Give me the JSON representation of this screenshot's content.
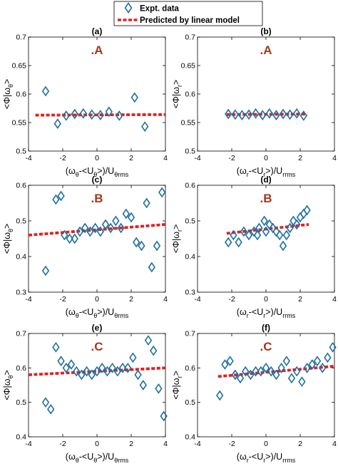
{
  "legend": {
    "items": [
      {
        "label": "Expt. data",
        "marker": "diamond",
        "color": "#1f6f9f"
      },
      {
        "label": "Predicted by linear model",
        "marker": "dashed-line",
        "color": "#e02020"
      }
    ]
  },
  "colors": {
    "marker": "#1f6f9f",
    "fit": "#e02020",
    "case_label": "#a0391a"
  },
  "chart_data": [
    {
      "type": "scatter",
      "panel": "(a)",
      "case": ".A",
      "xlabel": {
        "base": "(ω",
        "parts": [
          [
            "sub",
            "θ"
          ],
          [
            "n",
            "-<U"
          ],
          [
            "sub",
            "θ"
          ],
          [
            "n",
            ">)/U"
          ],
          [
            "sub",
            "θrms"
          ]
        ]
      },
      "ylabel": {
        "base": "<Φ|ω",
        "parts": [
          [
            "sub",
            "θ"
          ],
          [
            "n",
            ">"
          ]
        ]
      },
      "xlim": [
        -4,
        4
      ],
      "ylim": [
        0.5,
        0.7
      ],
      "xticks": [
        -4,
        -2,
        0,
        2,
        4
      ],
      "yticks": [
        0.5,
        0.55,
        0.6,
        0.65,
        0.7
      ],
      "ytick_labels": [
        "0.5",
        "0.55",
        "0.6",
        "0.65",
        "0.7"
      ],
      "points": [
        [
          -3.0,
          0.605
        ],
        [
          -2.3,
          0.548
        ],
        [
          -1.8,
          0.562
        ],
        [
          -1.3,
          0.565
        ],
        [
          -0.8,
          0.566
        ],
        [
          -0.3,
          0.564
        ],
        [
          0.2,
          0.563
        ],
        [
          0.7,
          0.569
        ],
        [
          1.3,
          0.562
        ],
        [
          2.2,
          0.594
        ],
        [
          2.8,
          0.543
        ]
      ],
      "fit": [
        [
          -3.6,
          0.563
        ],
        [
          4.0,
          0.564
        ]
      ]
    },
    {
      "type": "scatter",
      "panel": "(b)",
      "case": ".A",
      "xlabel": {
        "base": "(ω",
        "parts": [
          [
            "sub",
            "r"
          ],
          [
            "n",
            "-<U"
          ],
          [
            "sub",
            "r"
          ],
          [
            "n",
            ">)/U"
          ],
          [
            "sub",
            "rrms"
          ]
        ]
      },
      "ylabel": {
        "base": "<Φ|ω",
        "parts": [
          [
            "sub",
            "r"
          ],
          [
            "n",
            ">"
          ]
        ]
      },
      "xlim": [
        -4,
        4
      ],
      "ylim": [
        0.5,
        0.7
      ],
      "xticks": [
        -4,
        -2,
        0,
        2,
        4
      ],
      "yticks": [
        0.5,
        0.55,
        0.6,
        0.65,
        0.7
      ],
      "ytick_labels": [
        "0.5",
        "0.55",
        "0.6",
        "0.65",
        "0.7"
      ],
      "points": [
        [
          -2.2,
          0.565
        ],
        [
          -1.8,
          0.564
        ],
        [
          -1.4,
          0.563
        ],
        [
          -1.0,
          0.564
        ],
        [
          -0.6,
          0.566
        ],
        [
          -0.2,
          0.563
        ],
        [
          0.2,
          0.566
        ],
        [
          0.6,
          0.563
        ],
        [
          1.0,
          0.565
        ],
        [
          1.4,
          0.564
        ],
        [
          1.8,
          0.566
        ],
        [
          2.2,
          0.562
        ]
      ],
      "fit": [
        [
          -2.3,
          0.564
        ],
        [
          2.4,
          0.565
        ]
      ]
    },
    {
      "type": "scatter",
      "panel": "(c)",
      "case": ".B",
      "xlabel": {
        "base": "(ω",
        "parts": [
          [
            "sub",
            "θ"
          ],
          [
            "n",
            "-<U"
          ],
          [
            "sub",
            "θ"
          ],
          [
            "n",
            ">)/U"
          ],
          [
            "sub",
            "θrms"
          ]
        ]
      },
      "ylabel": {
        "base": "<Φ|ω",
        "parts": [
          [
            "sub",
            "θ"
          ],
          [
            "n",
            ">"
          ]
        ]
      },
      "xlim": [
        -4,
        4
      ],
      "ylim": [
        0.3,
        0.6
      ],
      "xticks": [
        -4,
        -2,
        0,
        2,
        4
      ],
      "yticks": [
        0.3,
        0.4,
        0.5,
        0.6
      ],
      "ytick_labels": [
        "0.3",
        "0.4",
        "0.5",
        "0.6"
      ],
      "points": [
        [
          -3.0,
          0.36
        ],
        [
          -2.4,
          0.56
        ],
        [
          -2.1,
          0.57
        ],
        [
          -1.9,
          0.46
        ],
        [
          -1.6,
          0.45
        ],
        [
          -1.3,
          0.45
        ],
        [
          -1.0,
          0.47
        ],
        [
          -0.7,
          0.48
        ],
        [
          -0.4,
          0.47
        ],
        [
          -0.1,
          0.48
        ],
        [
          0.2,
          0.47
        ],
        [
          0.5,
          0.49
        ],
        [
          0.8,
          0.48
        ],
        [
          1.1,
          0.5
        ],
        [
          1.4,
          0.48
        ],
        [
          1.7,
          0.52
        ],
        [
          2.0,
          0.51
        ],
        [
          2.3,
          0.44
        ],
        [
          2.6,
          0.43
        ],
        [
          2.9,
          0.55
        ],
        [
          3.2,
          0.37
        ],
        [
          3.5,
          0.43
        ],
        [
          3.8,
          0.58
        ]
      ],
      "fit": [
        [
          -4.0,
          0.46
        ],
        [
          4.0,
          0.49
        ]
      ]
    },
    {
      "type": "scatter",
      "panel": "(d)",
      "case": ".B",
      "xlabel": {
        "base": "(ω",
        "parts": [
          [
            "sub",
            "r"
          ],
          [
            "n",
            "-<U"
          ],
          [
            "sub",
            "r"
          ],
          [
            "n",
            ">)/U"
          ],
          [
            "sub",
            "rrms"
          ]
        ]
      },
      "ylabel": {
        "base": "<Φ|ω",
        "parts": [
          [
            "sub",
            "r"
          ],
          [
            "n",
            ">"
          ]
        ]
      },
      "xlim": [
        -4,
        4
      ],
      "ylim": [
        0.3,
        0.6
      ],
      "xticks": [
        -4,
        -2,
        0,
        2,
        4
      ],
      "yticks": [
        0.3,
        0.4,
        0.5,
        0.6
      ],
      "ytick_labels": [
        "0.3",
        "0.4",
        "0.5",
        "0.6"
      ],
      "points": [
        [
          -2.2,
          0.44
        ],
        [
          -1.9,
          0.46
        ],
        [
          -1.6,
          0.44
        ],
        [
          -1.3,
          0.47
        ],
        [
          -1.0,
          0.46
        ],
        [
          -0.7,
          0.47
        ],
        [
          -0.4,
          0.48
        ],
        [
          -0.1,
          0.5
        ],
        [
          0.2,
          0.49
        ],
        [
          0.4,
          0.48
        ],
        [
          0.6,
          0.47
        ],
        [
          0.8,
          0.46
        ],
        [
          1.0,
          0.43
        ],
        [
          1.2,
          0.46
        ],
        [
          1.4,
          0.48
        ],
        [
          1.6,
          0.5
        ],
        [
          1.8,
          0.49
        ],
        [
          2.0,
          0.51
        ],
        [
          2.2,
          0.52
        ],
        [
          2.4,
          0.53
        ],
        [
          0.0,
          0.47
        ],
        [
          -0.5,
          0.46
        ]
      ],
      "fit": [
        [
          -2.3,
          0.465
        ],
        [
          2.5,
          0.49
        ]
      ]
    },
    {
      "type": "scatter",
      "panel": "(e)",
      "case": ".C",
      "xlabel": {
        "base": "(ω",
        "parts": [
          [
            "sub",
            "θ"
          ],
          [
            "n",
            "-<U"
          ],
          [
            "sub",
            "θ"
          ],
          [
            "n",
            ">)/U"
          ],
          [
            "sub",
            "θrms"
          ]
        ]
      },
      "ylabel": {
        "base": "<Φ|ω",
        "parts": [
          [
            "sub",
            "θ"
          ],
          [
            "n",
            ">"
          ]
        ]
      },
      "xlim": [
        -4,
        4
      ],
      "ylim": [
        0.4,
        0.7
      ],
      "xticks": [
        -4,
        -2,
        0,
        2,
        4
      ],
      "yticks": [
        0.4,
        0.5,
        0.6,
        0.7
      ],
      "ytick_labels": [
        "0.4",
        "0.5",
        "0.6",
        "0.7"
      ],
      "points": [
        [
          -3.0,
          0.5
        ],
        [
          -2.7,
          0.48
        ],
        [
          -2.4,
          0.66
        ],
        [
          -2.1,
          0.62
        ],
        [
          -1.8,
          0.6
        ],
        [
          -1.5,
          0.61
        ],
        [
          -1.2,
          0.59
        ],
        [
          -0.9,
          0.58
        ],
        [
          -0.6,
          0.59
        ],
        [
          -0.3,
          0.58
        ],
        [
          0.0,
          0.59
        ],
        [
          0.3,
          0.6
        ],
        [
          0.6,
          0.59
        ],
        [
          0.9,
          0.6
        ],
        [
          1.2,
          0.59
        ],
        [
          1.5,
          0.6
        ],
        [
          1.8,
          0.6
        ],
        [
          2.1,
          0.63
        ],
        [
          2.4,
          0.58
        ],
        [
          2.7,
          0.55
        ],
        [
          3.0,
          0.68
        ],
        [
          3.3,
          0.65
        ],
        [
          3.6,
          0.54
        ],
        [
          3.9,
          0.46
        ]
      ],
      "fit": [
        [
          -4.0,
          0.58
        ],
        [
          4.0,
          0.6
        ]
      ]
    },
    {
      "type": "scatter",
      "panel": "(f)",
      "case": ".C",
      "xlabel": {
        "base": "(ω",
        "parts": [
          [
            "sub",
            "r"
          ],
          [
            "n",
            "-<U"
          ],
          [
            "sub",
            "r"
          ],
          [
            "n",
            ">)/U"
          ],
          [
            "sub",
            "rrms"
          ]
        ]
      },
      "ylabel": {
        "base": "<Φ|ω",
        "parts": [
          [
            "sub",
            "r"
          ],
          [
            "n",
            ">"
          ]
        ]
      },
      "xlim": [
        -4,
        4
      ],
      "ylim": [
        0.4,
        0.7
      ],
      "xticks": [
        -4,
        -2,
        0,
        2,
        4
      ],
      "yticks": [
        0.4,
        0.5,
        0.6,
        0.7
      ],
      "ytick_labels": [
        "0.4",
        "0.5",
        "0.6",
        "0.7"
      ],
      "points": [
        [
          -2.7,
          0.52
        ],
        [
          -2.4,
          0.61
        ],
        [
          -2.1,
          0.62
        ],
        [
          -1.8,
          0.58
        ],
        [
          -1.5,
          0.57
        ],
        [
          -1.2,
          0.59
        ],
        [
          -0.9,
          0.58
        ],
        [
          -0.6,
          0.59
        ],
        [
          -0.3,
          0.59
        ],
        [
          0.0,
          0.6
        ],
        [
          0.3,
          0.59
        ],
        [
          0.6,
          0.58
        ],
        [
          0.9,
          0.6
        ],
        [
          1.2,
          0.62
        ],
        [
          1.5,
          0.57
        ],
        [
          1.8,
          0.59
        ],
        [
          2.1,
          0.56
        ],
        [
          2.4,
          0.6
        ],
        [
          2.7,
          0.61
        ],
        [
          3.0,
          0.62
        ],
        [
          3.3,
          0.6
        ],
        [
          3.6,
          0.63
        ],
        [
          3.9,
          0.66
        ]
      ],
      "fit": [
        [
          -2.8,
          0.575
        ],
        [
          4.0,
          0.605
        ]
      ]
    }
  ]
}
